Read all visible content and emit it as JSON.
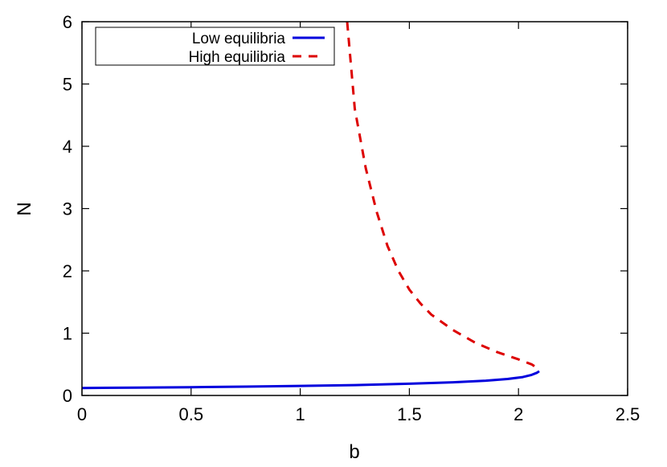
{
  "chart_data": {
    "type": "line",
    "title": "",
    "xlabel": "b",
    "ylabel": "N",
    "xlim": [
      0,
      2.5
    ],
    "ylim": [
      0,
      6
    ],
    "x_ticks": [
      "0",
      "0.5",
      "1",
      "1.5",
      "2",
      "2.5"
    ],
    "y_ticks": [
      "0",
      "1",
      "2",
      "3",
      "4",
      "5",
      "6"
    ],
    "grid": false,
    "legend_position": "top-left",
    "series": [
      {
        "name": "Low equilibria",
        "color": "#0000dd",
        "style": "solid",
        "points": [
          [
            0,
            0.12
          ],
          [
            0.25,
            0.125
          ],
          [
            0.5,
            0.133
          ],
          [
            0.75,
            0.142
          ],
          [
            1.0,
            0.153
          ],
          [
            1.25,
            0.167
          ],
          [
            1.5,
            0.188
          ],
          [
            1.7,
            0.212
          ],
          [
            1.85,
            0.238
          ],
          [
            1.95,
            0.265
          ],
          [
            2.02,
            0.295
          ],
          [
            2.06,
            0.33
          ],
          [
            2.085,
            0.365
          ],
          [
            2.095,
            0.39
          ]
        ]
      },
      {
        "name": "High equilibria",
        "color": "#dd0000",
        "style": "dashed",
        "points": [
          [
            1.215,
            6.0
          ],
          [
            1.25,
            4.6
          ],
          [
            1.3,
            3.65
          ],
          [
            1.35,
            2.95
          ],
          [
            1.4,
            2.4
          ],
          [
            1.45,
            2.0
          ],
          [
            1.5,
            1.7
          ],
          [
            1.55,
            1.48
          ],
          [
            1.6,
            1.3
          ],
          [
            1.7,
            1.05
          ],
          [
            1.8,
            0.85
          ],
          [
            1.9,
            0.7
          ],
          [
            2.0,
            0.58
          ],
          [
            2.06,
            0.5
          ],
          [
            2.095,
            0.42
          ]
        ]
      }
    ]
  }
}
